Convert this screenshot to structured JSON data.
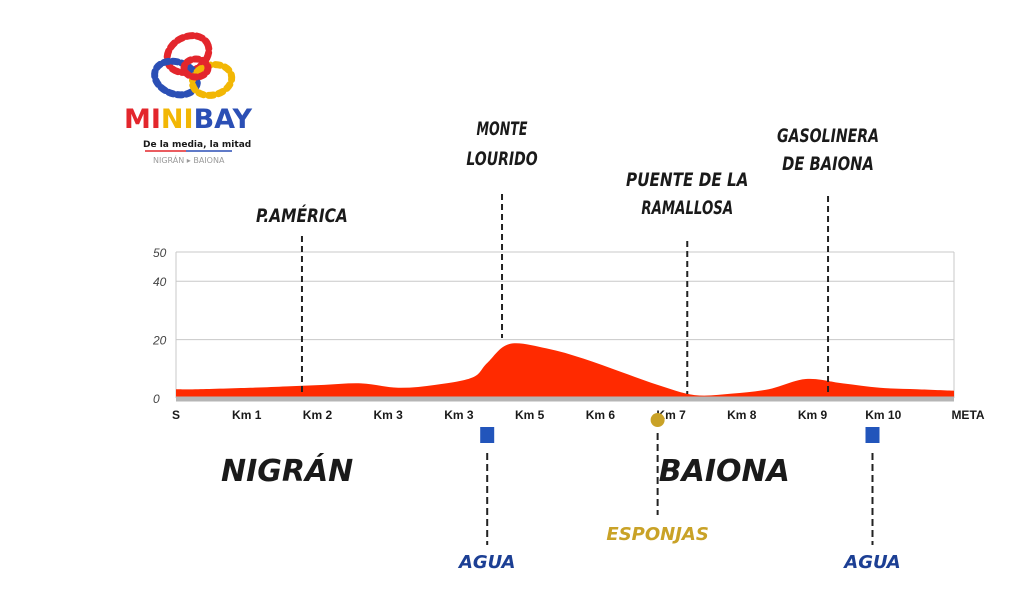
{
  "logo": {
    "word_parts": [
      {
        "text": "MI",
        "color": "#e3262c"
      },
      {
        "text": "NI",
        "color": "#f2b705"
      },
      {
        "text": "BAY",
        "color": "#2b4fb5"
      }
    ],
    "tagline": "De la media, la mitad",
    "route": "NIGRÁN ▸ BAIONA"
  },
  "colors": {
    "profile_fill": "#ff2a00",
    "baseline": "#b5b5b5",
    "grid": "#c8c8c8",
    "water_marker": "#2255bb",
    "water_label": "#1c3f94",
    "sponge_marker": "#c9a227",
    "sponge_label": "#c9a227",
    "text_dark": "#1a1a1a"
  },
  "chart_data": {
    "type": "area",
    "ylim": [
      0,
      50
    ],
    "yticks": [
      0,
      20,
      40,
      50
    ],
    "grid": true,
    "x_ticks": [
      "S",
      "Km 1",
      "Km 2",
      "Km 3",
      "Km 3",
      "Km 5",
      "Km 6",
      "Km 7",
      "Km 8",
      "Km 9",
      "Km 10",
      "META"
    ],
    "x": [
      0,
      0.3,
      1,
      1.5,
      2,
      2.5,
      3,
      3.5,
      4,
      4.2,
      4.5,
      5,
      5.5,
      6,
      6.5,
      7,
      7.5,
      8,
      8.5,
      9,
      9.5,
      10,
      10.5
    ],
    "elevation": [
      3,
      3,
      3.5,
      4,
      4.5,
      5,
      3.5,
      4.5,
      7,
      12,
      18.5,
      17,
      13.5,
      9,
      4.5,
      1,
      1.5,
      3,
      6.5,
      5,
      3.5,
      3,
      2.5
    ],
    "landmarks": [
      {
        "name": "P.AMÉRICA",
        "km": 1.7
      },
      {
        "name": "MONTE LOURIDO",
        "km": 4.4
      },
      {
        "name": "PUENTE DE LA RAMALLOSA",
        "km": 6.9
      },
      {
        "name": "GASOLINERA DE BAIONA",
        "km": 8.8
      }
    ],
    "municipalities": [
      {
        "name": "NIGRÁN",
        "km": 1.5
      },
      {
        "name": "BAIONA",
        "km": 7.4
      }
    ],
    "services": [
      {
        "name": "AGUA",
        "km": 4.2,
        "kind": "water"
      },
      {
        "name": "ESPONJAS",
        "km": 6.5,
        "kind": "sponge"
      },
      {
        "name": "AGUA",
        "km": 9.4,
        "kind": "water"
      }
    ]
  }
}
